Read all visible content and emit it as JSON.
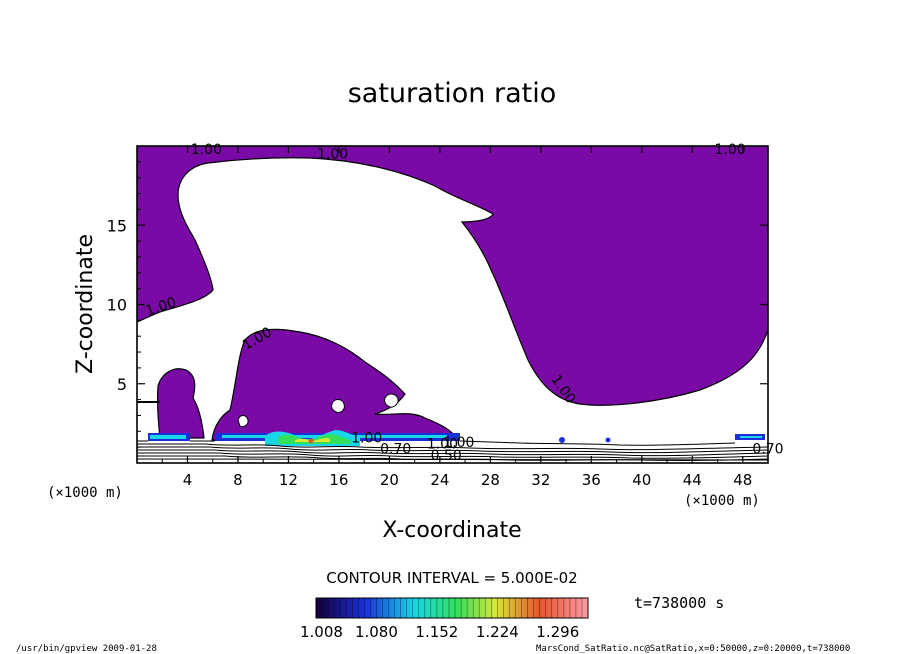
{
  "chart_data": {
    "type": "heatmap",
    "title": "saturation ratio",
    "xlabel": "X-coordinate",
    "ylabel": "Z-coordinate",
    "x_unit": "(×1000 m)",
    "z_unit": "(×1000 m)",
    "xlim": [
      0,
      50
    ],
    "ylim": [
      0,
      20
    ],
    "x_ticks": [
      "4",
      "8",
      "12",
      "16",
      "20",
      "24",
      "28",
      "32",
      "36",
      "40",
      "44",
      "48"
    ],
    "y_ticks": [
      "5",
      "10",
      "15"
    ],
    "contour_interval_text": "CONTOUR INTERVAL = 5.000E-02",
    "contour_labels": [
      "1.00",
      "1.00",
      "1.00",
      "1.00",
      "1.00",
      "1.00",
      "1.00",
      "1.00",
      "1.00",
      "0.70",
      "0.70",
      "0.50"
    ],
    "colorbar": {
      "min": 1.008,
      "max": 1.332,
      "tick_labels": [
        "1.008",
        "1.080",
        "1.152",
        "1.224",
        "1.296"
      ]
    },
    "time_label": "t=738000 s",
    "colors": {
      "fill": "#7a0aa6",
      "line": "#000000"
    }
  },
  "footer": {
    "left": "/usr/bin/gpview   2009-01-28",
    "right": "MarsCond_SatRatio.nc@SatRatio,x=0:50000,z=0:20000,t=738000"
  }
}
